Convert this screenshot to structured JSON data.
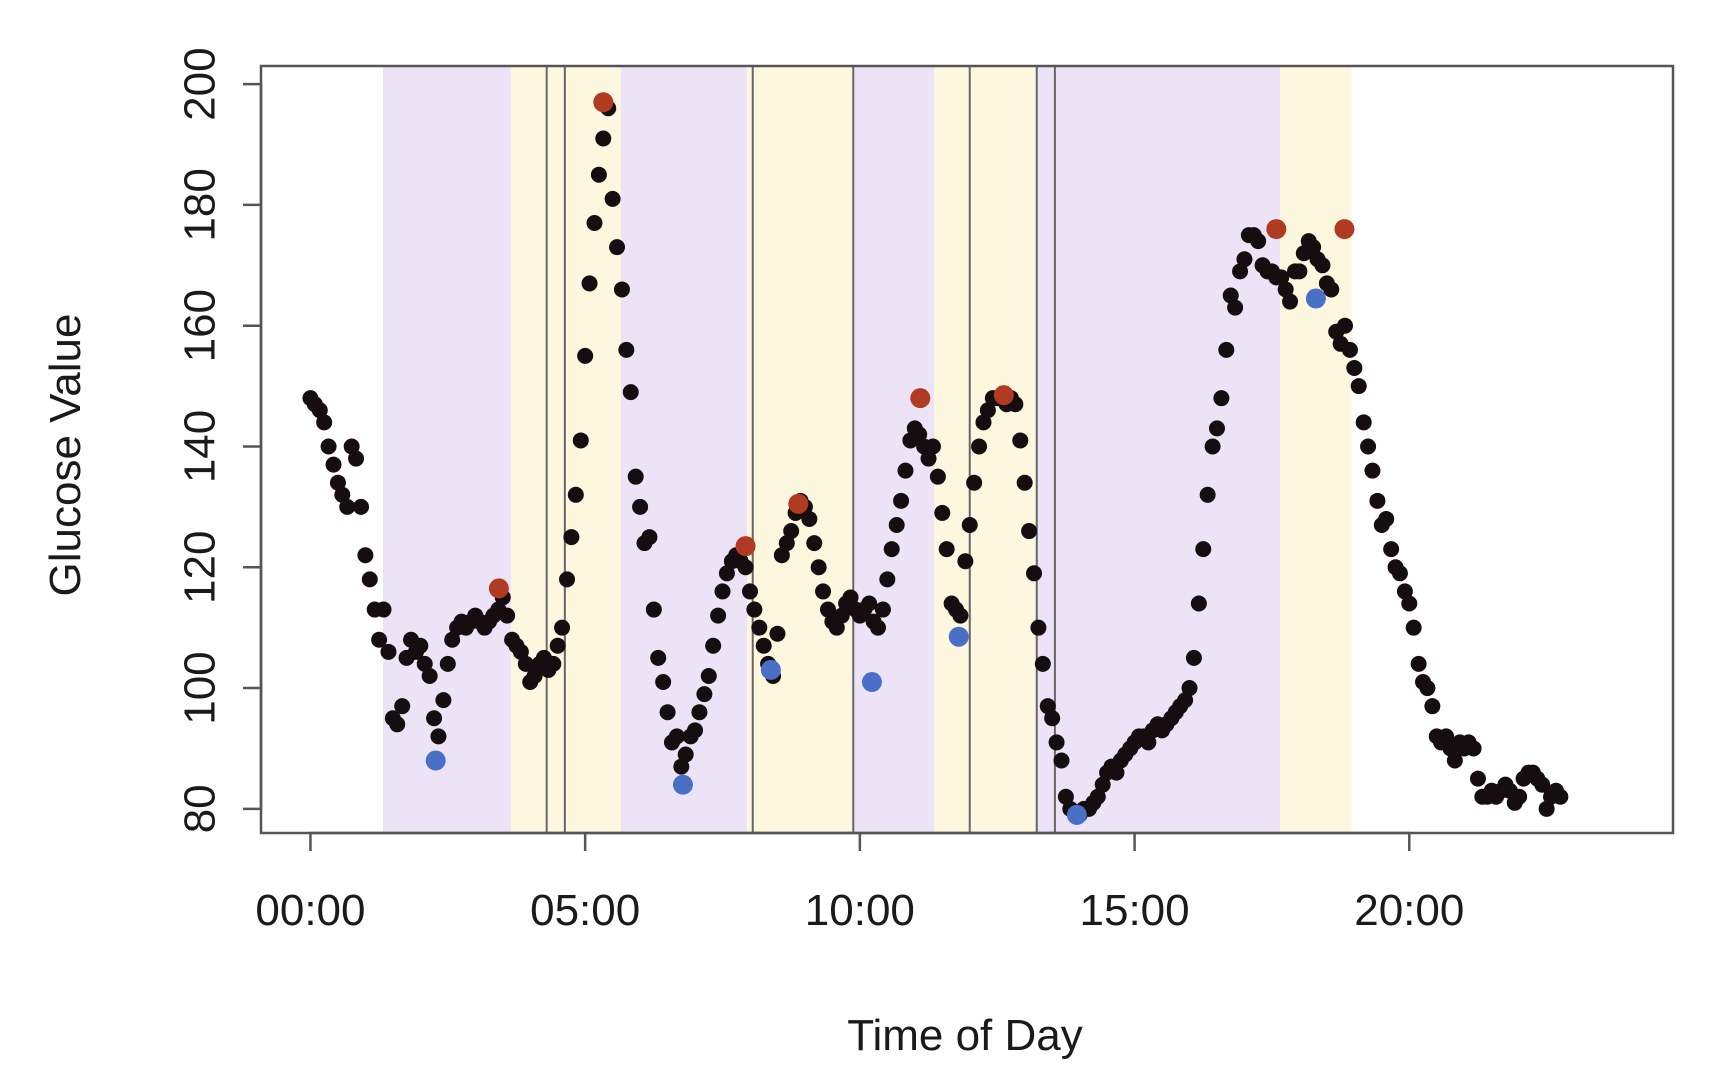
{
  "chart_data": {
    "type": "scatter",
    "title": "",
    "xlabel": "Time of Day",
    "ylabel": "Glucose Value",
    "xlim": [
      -0.9,
      24.8
    ],
    "ylim": [
      76,
      203
    ],
    "x_ticks": [
      {
        "value": 0,
        "label": "00:00"
      },
      {
        "value": 5,
        "label": "05:00"
      },
      {
        "value": 10,
        "label": "10:00"
      },
      {
        "value": 15,
        "label": "15:00"
      },
      {
        "value": 20,
        "label": "20:00"
      }
    ],
    "y_ticks": [
      {
        "value": 80,
        "label": "80"
      },
      {
        "value": 100,
        "label": "100"
      },
      {
        "value": 120,
        "label": "120"
      },
      {
        "value": 140,
        "label": "140"
      },
      {
        "value": 160,
        "label": "160"
      },
      {
        "value": 180,
        "label": "180"
      },
      {
        "value": 200,
        "label": "200"
      }
    ],
    "grid": false,
    "colors": {
      "sleep_band": "#ece4f6",
      "meal_band": "#fdf7df",
      "readings": "#150d10",
      "peak_marker": "#b03a22",
      "trough_marker": "#4a6fc6",
      "event_line": "#666666",
      "axis": "#555555"
    },
    "shaded_regions": [
      {
        "kind": "sleep",
        "start": 1.32,
        "end": 3.65
      },
      {
        "kind": "meal",
        "start": 3.65,
        "end": 5.65
      },
      {
        "kind": "sleep",
        "start": 5.65,
        "end": 7.95
      },
      {
        "kind": "meal",
        "start": 7.95,
        "end": 9.9
      },
      {
        "kind": "sleep",
        "start": 9.9,
        "end": 11.35
      },
      {
        "kind": "meal",
        "start": 11.35,
        "end": 13.2
      },
      {
        "kind": "sleep",
        "start": 13.2,
        "end": 17.65
      },
      {
        "kind": "meal",
        "start": 17.65,
        "end": 18.95
      }
    ],
    "vertical_lines": [
      4.3,
      4.63,
      8.05,
      9.88,
      12.0,
      13.22,
      13.55
    ],
    "peaks": [
      {
        "x": 3.43,
        "y": 116.5
      },
      {
        "x": 5.33,
        "y": 197
      },
      {
        "x": 7.92,
        "y": 123.5
      },
      {
        "x": 8.88,
        "y": 130.5
      },
      {
        "x": 11.1,
        "y": 148
      },
      {
        "x": 12.62,
        "y": 148.5
      },
      {
        "x": 17.58,
        "y": 176
      },
      {
        "x": 18.82,
        "y": 176
      }
    ],
    "troughs": [
      {
        "x": 2.28,
        "y": 88
      },
      {
        "x": 6.78,
        "y": 84
      },
      {
        "x": 8.38,
        "y": 103
      },
      {
        "x": 10.22,
        "y": 101
      },
      {
        "x": 11.8,
        "y": 108.5
      },
      {
        "x": 13.95,
        "y": 79
      },
      {
        "x": 18.3,
        "y": 164.5
      }
    ],
    "series": [
      {
        "points": [
          [
            0.0,
            148
          ],
          [
            0.08,
            147
          ],
          [
            0.17,
            146
          ],
          [
            0.25,
            144
          ],
          [
            0.33,
            140
          ],
          [
            0.42,
            137
          ],
          [
            0.5,
            134
          ],
          [
            0.58,
            132
          ],
          [
            0.67,
            130
          ],
          [
            0.75,
            140
          ],
          [
            0.83,
            138
          ],
          [
            0.92,
            130
          ],
          [
            1.0,
            122
          ],
          [
            1.08,
            118
          ],
          [
            1.17,
            113
          ],
          [
            1.25,
            108
          ],
          [
            1.33,
            113
          ],
          [
            1.42,
            106
          ],
          [
            1.5,
            95
          ],
          [
            1.58,
            94
          ],
          [
            1.67,
            97
          ],
          [
            1.75,
            105
          ],
          [
            1.83,
            108
          ],
          [
            1.92,
            106
          ],
          [
            2.0,
            107
          ],
          [
            2.08,
            104
          ],
          [
            2.17,
            102
          ],
          [
            2.25,
            95
          ],
          [
            2.33,
            92
          ],
          [
            2.42,
            98
          ],
          [
            2.5,
            104
          ],
          [
            2.58,
            108
          ],
          [
            2.67,
            110
          ],
          [
            2.75,
            111
          ],
          [
            2.83,
            110
          ],
          [
            2.92,
            111
          ],
          [
            3.0,
            112
          ],
          [
            3.08,
            111
          ],
          [
            3.17,
            110
          ],
          [
            3.25,
            111
          ],
          [
            3.33,
            112
          ],
          [
            3.42,
            113
          ],
          [
            3.5,
            115
          ],
          [
            3.58,
            112
          ],
          [
            3.67,
            108
          ],
          [
            3.75,
            107
          ],
          [
            3.83,
            106
          ],
          [
            3.92,
            104
          ],
          [
            4.0,
            101
          ],
          [
            4.08,
            102
          ],
          [
            4.17,
            104
          ],
          [
            4.25,
            105
          ],
          [
            4.33,
            103
          ],
          [
            4.42,
            104
          ],
          [
            4.5,
            107
          ],
          [
            4.58,
            110
          ],
          [
            4.67,
            118
          ],
          [
            4.75,
            125
          ],
          [
            4.83,
            132
          ],
          [
            4.92,
            141
          ],
          [
            5.0,
            155
          ],
          [
            5.08,
            167
          ],
          [
            5.17,
            177
          ],
          [
            5.25,
            185
          ],
          [
            5.33,
            191
          ],
          [
            5.42,
            196
          ],
          [
            5.5,
            181
          ],
          [
            5.58,
            173
          ],
          [
            5.67,
            166
          ],
          [
            5.75,
            156
          ],
          [
            5.83,
            149
          ],
          [
            5.92,
            135
          ],
          [
            6.0,
            130
          ],
          [
            6.08,
            124
          ],
          [
            6.17,
            125
          ],
          [
            6.25,
            113
          ],
          [
            6.33,
            105
          ],
          [
            6.42,
            101
          ],
          [
            6.5,
            96
          ],
          [
            6.58,
            91
          ],
          [
            6.67,
            92
          ],
          [
            6.75,
            87
          ],
          [
            6.83,
            89
          ],
          [
            6.92,
            92
          ],
          [
            7.0,
            93
          ],
          [
            7.08,
            96
          ],
          [
            7.17,
            99
          ],
          [
            7.25,
            102
          ],
          [
            7.33,
            107
          ],
          [
            7.42,
            112
          ],
          [
            7.5,
            116
          ],
          [
            7.58,
            119
          ],
          [
            7.67,
            121
          ],
          [
            7.75,
            122
          ],
          [
            7.83,
            121
          ],
          [
            7.92,
            120
          ],
          [
            8.0,
            116
          ],
          [
            8.08,
            113
          ],
          [
            8.17,
            110
          ],
          [
            8.25,
            107
          ],
          [
            8.33,
            104
          ],
          [
            8.42,
            102
          ],
          [
            8.5,
            109
          ],
          [
            8.58,
            122
          ],
          [
            8.67,
            124
          ],
          [
            8.75,
            126
          ],
          [
            8.83,
            129
          ],
          [
            8.92,
            131
          ],
          [
            9.0,
            130
          ],
          [
            9.08,
            128
          ],
          [
            9.17,
            124
          ],
          [
            9.25,
            120
          ],
          [
            9.33,
            116
          ],
          [
            9.42,
            113
          ],
          [
            9.5,
            111
          ],
          [
            9.58,
            110
          ],
          [
            9.67,
            112
          ],
          [
            9.75,
            114
          ],
          [
            9.83,
            115
          ],
          [
            9.92,
            113
          ],
          [
            10.0,
            112
          ],
          [
            10.08,
            113
          ],
          [
            10.17,
            114
          ],
          [
            10.25,
            111
          ],
          [
            10.33,
            110
          ],
          [
            10.42,
            113
          ],
          [
            10.5,
            118
          ],
          [
            10.58,
            123
          ],
          [
            10.67,
            127
          ],
          [
            10.75,
            131
          ],
          [
            10.83,
            136
          ],
          [
            10.92,
            141
          ],
          [
            11.0,
            143
          ],
          [
            11.08,
            142
          ],
          [
            11.17,
            140
          ],
          [
            11.25,
            138
          ],
          [
            11.33,
            140
          ],
          [
            11.42,
            135
          ],
          [
            11.5,
            129
          ],
          [
            11.58,
            123
          ],
          [
            11.67,
            114
          ],
          [
            11.75,
            113
          ],
          [
            11.83,
            112
          ],
          [
            11.92,
            121
          ],
          [
            12.0,
            127
          ],
          [
            12.08,
            134
          ],
          [
            12.17,
            140
          ],
          [
            12.25,
            144
          ],
          [
            12.33,
            146
          ],
          [
            12.42,
            148
          ],
          [
            12.5,
            148
          ],
          [
            12.58,
            148
          ],
          [
            12.67,
            147
          ],
          [
            12.75,
            148
          ],
          [
            12.83,
            147
          ],
          [
            12.92,
            141
          ],
          [
            13.0,
            134
          ],
          [
            13.08,
            126
          ],
          [
            13.17,
            119
          ],
          [
            13.25,
            110
          ],
          [
            13.33,
            104
          ],
          [
            13.42,
            97
          ],
          [
            13.5,
            95
          ],
          [
            13.58,
            91
          ],
          [
            13.67,
            88
          ],
          [
            13.75,
            82
          ],
          [
            13.83,
            80
          ],
          [
            13.92,
            79
          ],
          [
            14.0,
            79
          ],
          [
            14.08,
            80
          ],
          [
            14.17,
            80
          ],
          [
            14.25,
            81
          ],
          [
            14.33,
            82
          ],
          [
            14.42,
            84
          ],
          [
            14.5,
            86
          ],
          [
            14.58,
            87
          ],
          [
            14.67,
            86
          ],
          [
            14.75,
            88
          ],
          [
            14.83,
            89
          ],
          [
            14.92,
            90
          ],
          [
            15.0,
            91
          ],
          [
            15.08,
            92
          ],
          [
            15.17,
            92
          ],
          [
            15.25,
            91
          ],
          [
            15.33,
            93
          ],
          [
            15.42,
            94
          ],
          [
            15.5,
            93
          ],
          [
            15.58,
            94
          ],
          [
            15.67,
            95
          ],
          [
            15.75,
            96
          ],
          [
            15.83,
            97
          ],
          [
            15.92,
            98
          ],
          [
            16.0,
            100
          ],
          [
            16.08,
            105
          ],
          [
            16.17,
            114
          ],
          [
            16.25,
            123
          ],
          [
            16.33,
            132
          ],
          [
            16.42,
            140
          ],
          [
            16.5,
            143
          ],
          [
            16.58,
            148
          ],
          [
            16.67,
            156
          ],
          [
            16.75,
            165
          ],
          [
            16.83,
            163
          ],
          [
            16.92,
            169
          ],
          [
            17.0,
            171
          ],
          [
            17.08,
            175
          ],
          [
            17.17,
            175
          ],
          [
            17.25,
            174
          ],
          [
            17.33,
            170
          ],
          [
            17.42,
            169
          ],
          [
            17.5,
            169
          ],
          [
            17.58,
            168
          ],
          [
            17.67,
            168
          ],
          [
            17.75,
            166
          ],
          [
            17.83,
            164
          ],
          [
            17.92,
            169
          ],
          [
            18.0,
            169
          ],
          [
            18.08,
            172
          ],
          [
            18.17,
            174
          ],
          [
            18.25,
            173
          ],
          [
            18.33,
            171
          ],
          [
            18.42,
            170
          ],
          [
            18.5,
            167
          ],
          [
            18.58,
            166
          ],
          [
            18.67,
            159
          ],
          [
            18.75,
            157
          ],
          [
            18.83,
            160
          ],
          [
            18.92,
            156
          ],
          [
            19.0,
            153
          ],
          [
            19.08,
            150
          ],
          [
            19.17,
            144
          ],
          [
            19.25,
            140
          ],
          [
            19.33,
            136
          ],
          [
            19.42,
            131
          ],
          [
            19.5,
            127
          ],
          [
            19.58,
            128
          ],
          [
            19.67,
            123
          ],
          [
            19.75,
            120
          ],
          [
            19.83,
            119
          ],
          [
            19.92,
            116
          ],
          [
            20.0,
            114
          ],
          [
            20.08,
            110
          ],
          [
            20.17,
            104
          ],
          [
            20.25,
            101
          ],
          [
            20.33,
            100
          ],
          [
            20.42,
            97
          ],
          [
            20.5,
            92
          ],
          [
            20.58,
            91
          ],
          [
            20.67,
            92
          ],
          [
            20.75,
            90
          ],
          [
            20.83,
            88
          ],
          [
            20.92,
            91
          ],
          [
            21.0,
            90
          ],
          [
            21.08,
            91
          ],
          [
            21.17,
            90
          ],
          [
            21.25,
            85
          ],
          [
            21.33,
            82
          ],
          [
            21.42,
            82
          ],
          [
            21.5,
            83
          ],
          [
            21.58,
            82
          ],
          [
            21.67,
            83
          ],
          [
            21.75,
            84
          ],
          [
            21.83,
            83
          ],
          [
            21.92,
            81
          ],
          [
            22.0,
            82
          ],
          [
            22.08,
            85
          ],
          [
            22.17,
            86
          ],
          [
            22.25,
            86
          ],
          [
            22.33,
            85
          ],
          [
            22.42,
            84
          ],
          [
            22.5,
            80
          ],
          [
            22.58,
            82
          ],
          [
            22.67,
            83
          ],
          [
            22.75,
            82
          ]
        ]
      }
    ]
  }
}
